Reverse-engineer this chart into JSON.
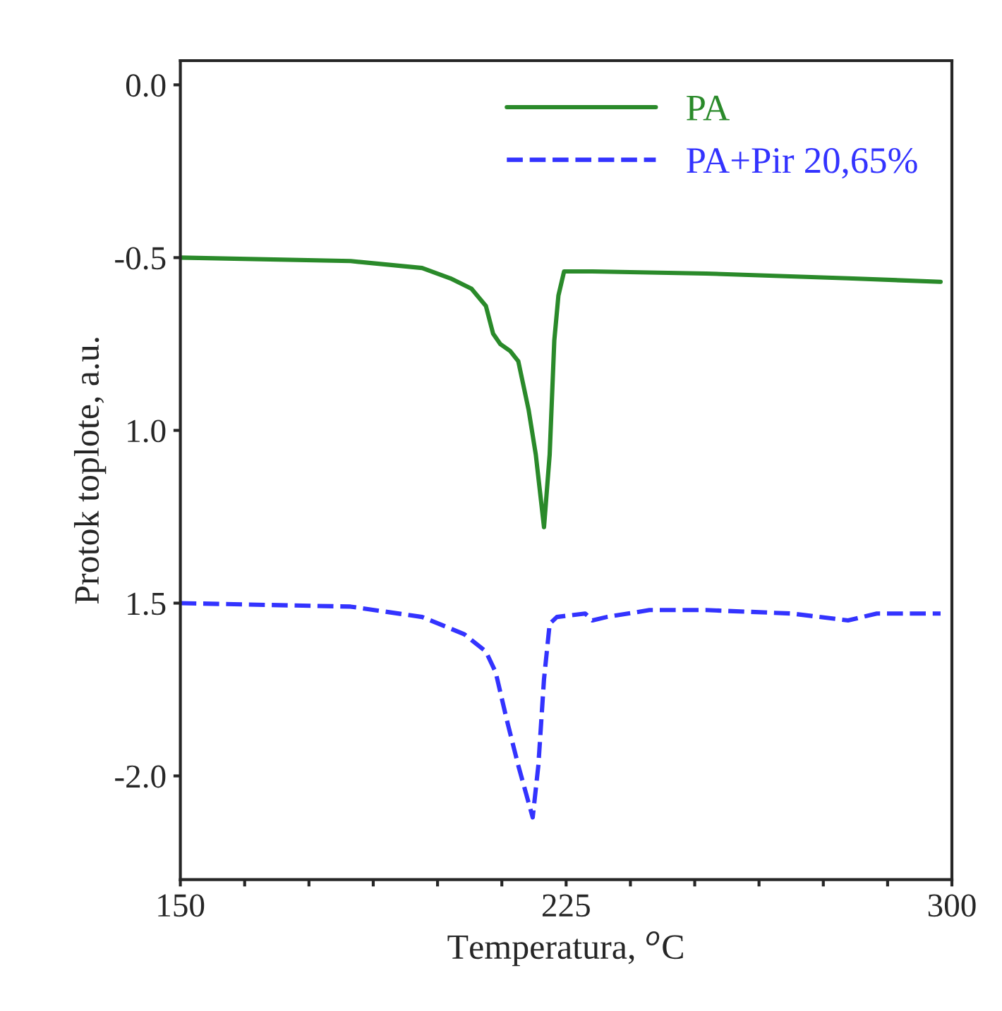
{
  "chart_data": {
    "type": "line",
    "xlabel": "Temperatura, $^{o}$C",
    "ylabel": "Protok toplote, a.u.",
    "xlim": [
      150,
      300
    ],
    "ylim": [
      -2.3,
      0.07
    ],
    "xticks": [
      150,
      {
        "value": 162.5,
        "label": null
      },
      {
        "value": 175,
        "label": null
      },
      {
        "value": 187.5,
        "label": null
      },
      {
        "value": 200,
        "label": null
      },
      {
        "value": 212.5,
        "label": null
      },
      225,
      {
        "value": 237.5,
        "label": null
      },
      {
        "value": 250,
        "label": null
      },
      {
        "value": 262.5,
        "label": null
      },
      {
        "value": 275,
        "label": null
      },
      {
        "value": 287.5,
        "label": null
      },
      300
    ],
    "yticks": [
      {
        "value": 0,
        "label": "0.0"
      },
      {
        "value": -0.5,
        "label": "-0.5"
      },
      {
        "value": -1.0,
        "label": "1.0"
      },
      {
        "value": -1.5,
        "label": "1.5"
      },
      {
        "value": -2.0,
        "label": "-2.0"
      }
    ],
    "grid": false,
    "legend": "top right",
    "series": [
      {
        "name": "PA",
        "color": "#2a8a2a",
        "line_style": "solid",
        "x": [
          150,
          183.1,
          197.0,
          202.5,
          206.6,
          209.4,
          210.8,
          212.2,
          214.1,
          215.7,
          217.7,
          219.1,
          220.7,
          221.8,
          222.7,
          223.5,
          224.6,
          230.1,
          252.2,
          279.8,
          297.8
        ],
        "values": [
          -0.5,
          -0.51,
          -0.53,
          -0.56,
          -0.59,
          -0.64,
          -0.72,
          -0.75,
          -0.77,
          -0.8,
          -0.94,
          -1.07,
          -1.28,
          -1.07,
          -0.74,
          -0.61,
          -0.54,
          -0.54,
          -0.546,
          -0.56,
          -0.57
        ]
      },
      {
        "name": "PA+Pir 20,65%",
        "color": "#3333ff",
        "line_style": "dashed",
        "x": [
          150,
          183.1,
          197.0,
          205.2,
          209.4,
          211.3,
          213.5,
          215.7,
          218.5,
          219.6,
          220.7,
          221.8,
          223.2,
          228.7,
          230.1,
          232.9,
          241.2,
          252.2,
          268.8,
          279.8,
          285.4,
          297.8
        ],
        "values": [
          -1.5,
          -1.51,
          -1.54,
          -1.59,
          -1.64,
          -1.7,
          -1.84,
          -1.97,
          -2.12,
          -1.97,
          -1.72,
          -1.56,
          -1.54,
          -1.53,
          -1.55,
          -1.54,
          -1.52,
          -1.52,
          -1.53,
          -1.55,
          -1.53,
          -1.53
        ]
      }
    ]
  }
}
